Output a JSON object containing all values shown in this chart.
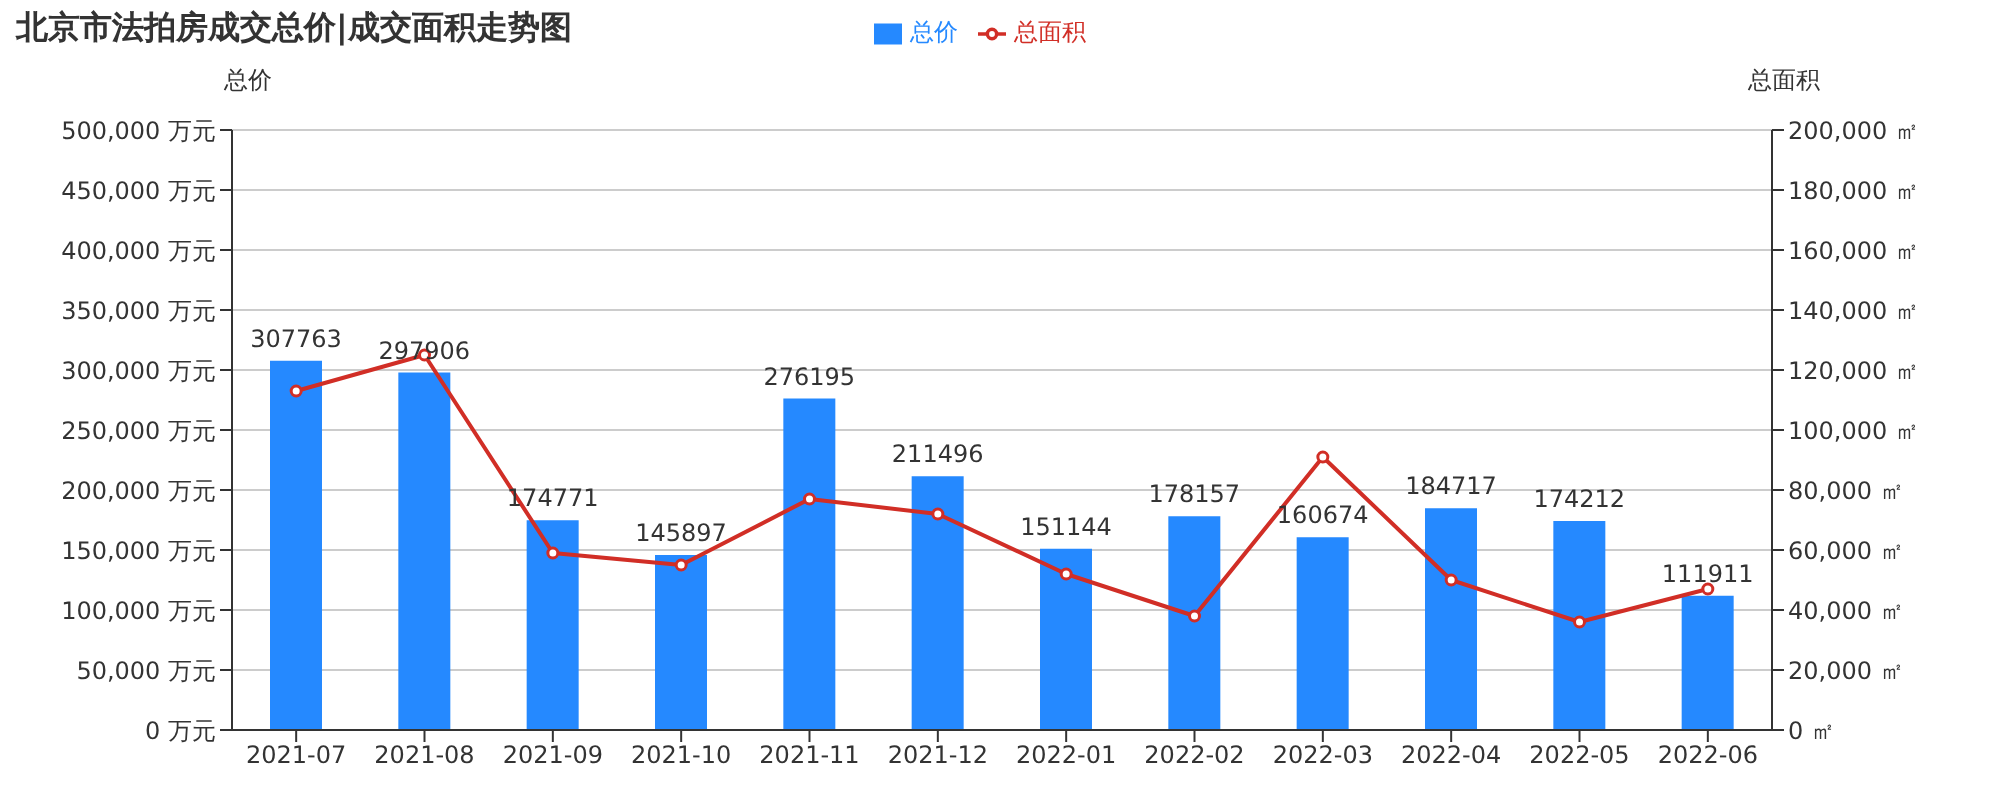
{
  "chart_data": {
    "type": "bar",
    "title": "北京市法拍房成交总价|成交面积走势图",
    "ylabel": "总价",
    "y2label": "总面积",
    "categories": [
      "2021-07",
      "2021-08",
      "2021-09",
      "2021-10",
      "2021-11",
      "2021-12",
      "2022-01",
      "2022-02",
      "2022-03",
      "2022-04",
      "2022-05",
      "2022-06"
    ],
    "series": [
      {
        "name": "总价",
        "color": "#2589ff",
        "values": [
          307763,
          297906,
          174771,
          145897,
          276195,
          211496,
          151144,
          178157,
          160674,
          184717,
          174212,
          111911
        ],
        "value_labels": [
          "307763",
          "297906",
          "174771",
          "145897",
          "276195",
          "211496",
          "151144",
          "178157",
          "160674",
          "184717",
          "174212",
          "111911"
        ]
      },
      {
        "name": "总面积",
        "type": "line",
        "axis": "y2",
        "color": "#d12e26",
        "marker": "circle",
        "values": [
          113000,
          125000,
          59000,
          55000,
          77000,
          72000,
          52000,
          38000,
          91000,
          50000,
          36000,
          47000
        ]
      }
    ],
    "ylim": [
      0,
      500000
    ],
    "yticks": [
      {
        "value": 0,
        "label": "0 万元"
      },
      {
        "value": 50000,
        "label": "50,000 万元"
      },
      {
        "value": 100000,
        "label": "100,000 万元"
      },
      {
        "value": 150000,
        "label": "150,000 万元"
      },
      {
        "value": 200000,
        "label": "200,000 万元"
      },
      {
        "value": 250000,
        "label": "250,000 万元"
      },
      {
        "value": 300000,
        "label": "300,000 万元"
      },
      {
        "value": 350000,
        "label": "350,000 万元"
      },
      {
        "value": 400000,
        "label": "400,000 万元"
      },
      {
        "value": 450000,
        "label": "450,000 万元"
      },
      {
        "value": 500000,
        "label": "500,000 万元"
      }
    ],
    "y2lim": [
      0,
      200000
    ],
    "y2ticks": [
      {
        "value": 0,
        "label": "0 ㎡"
      },
      {
        "value": 20000,
        "label": "20,000 ㎡"
      },
      {
        "value": 40000,
        "label": "40,000 ㎡"
      },
      {
        "value": 60000,
        "label": "60,000 ㎡"
      },
      {
        "value": 80000,
        "label": "80,000 ㎡"
      },
      {
        "value": 100000,
        "label": "100,000 ㎡"
      },
      {
        "value": 120000,
        "label": "120,000 ㎡"
      },
      {
        "value": 140000,
        "label": "140,000 ㎡"
      },
      {
        "value": 160000,
        "label": "160,000 ㎡"
      },
      {
        "value": 180000,
        "label": "180,000 ㎡"
      },
      {
        "value": 200000,
        "label": "200,000 ㎡"
      }
    ],
    "grid": "y",
    "legend": "top"
  }
}
